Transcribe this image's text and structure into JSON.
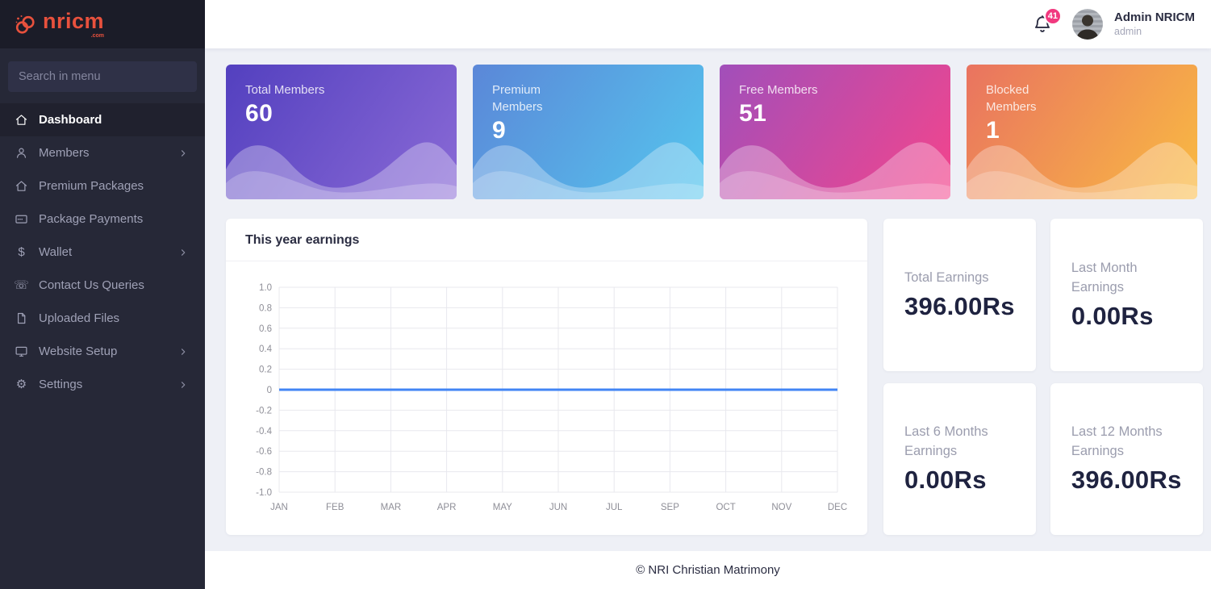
{
  "sidebar": {
    "logo": {
      "text": "nricm",
      "suffix": ".com",
      "color": "#e8513d"
    },
    "search_placeholder": "Search in menu",
    "items": [
      {
        "label": "Dashboard",
        "icon": "home",
        "active": true,
        "chevron": false
      },
      {
        "label": "Members",
        "icon": "user",
        "active": false,
        "chevron": true
      },
      {
        "label": "Premium Packages",
        "icon": "home",
        "active": false,
        "chevron": false
      },
      {
        "label": "Package Payments",
        "icon": "card",
        "active": false,
        "chevron": false
      },
      {
        "label": "Wallet",
        "icon": "dollar",
        "active": false,
        "chevron": true
      },
      {
        "label": "Contact Us Queries",
        "icon": "phone",
        "active": false,
        "chevron": false
      },
      {
        "label": "Uploaded Files",
        "icon": "file",
        "active": false,
        "chevron": false
      },
      {
        "label": "Website Setup",
        "icon": "monitor",
        "active": false,
        "chevron": true
      },
      {
        "label": "Settings",
        "icon": "gear",
        "active": false,
        "chevron": true
      }
    ]
  },
  "header": {
    "notification_count": "41",
    "badge_color": "#f1397f",
    "user_name": "Admin NRICM",
    "user_role": "admin"
  },
  "stats": [
    {
      "label": "Total Members",
      "value": "60",
      "gradient_from": "#5340bf",
      "gradient_to": "#8a6ad6"
    },
    {
      "label": "Premium Members",
      "value": "9",
      "gradient_from": "#5b87d8",
      "gradient_to": "#55c6ee"
    },
    {
      "label": "Free Members",
      "value": "51",
      "gradient_from": "#a14fba",
      "gradient_to": "#f4458c"
    },
    {
      "label": "Blocked Members",
      "value": "1",
      "gradient_from": "#e97360",
      "gradient_to": "#f9bb42"
    }
  ],
  "chart_data": {
    "type": "line",
    "title": "This year earnings",
    "x_labels": [
      "JAN",
      "FEB",
      "MAR",
      "APR",
      "MAY",
      "JUN",
      "JUL",
      "SEP",
      "OCT",
      "NOV",
      "DEC"
    ],
    "series": [
      {
        "name": "earnings",
        "values": [
          0,
          0,
          0,
          0,
          0,
          0,
          0,
          0,
          0,
          0,
          0
        ]
      }
    ],
    "y_ticks": [
      "1.0",
      "0.8",
      "0.6",
      "0.4",
      "0.2",
      "0",
      "-0.2",
      "-0.4",
      "-0.6",
      "-0.8",
      "-1.0"
    ],
    "ylim": [
      -1.0,
      1.0
    ],
    "xlabel": "",
    "ylabel": "",
    "grid": true,
    "legend": "none",
    "line_color": "#4285f4"
  },
  "earnings": [
    {
      "label": "Total Earnings",
      "value": "396.00Rs"
    },
    {
      "label": "Last Month Earnings",
      "value": "0.00Rs"
    },
    {
      "label": "Last 6 Months Earnings",
      "value": "0.00Rs"
    },
    {
      "label": "Last 12 Months Earnings",
      "value": "396.00Rs"
    }
  ],
  "footer": {
    "copyright": "© NRI Christian Matrimony"
  }
}
